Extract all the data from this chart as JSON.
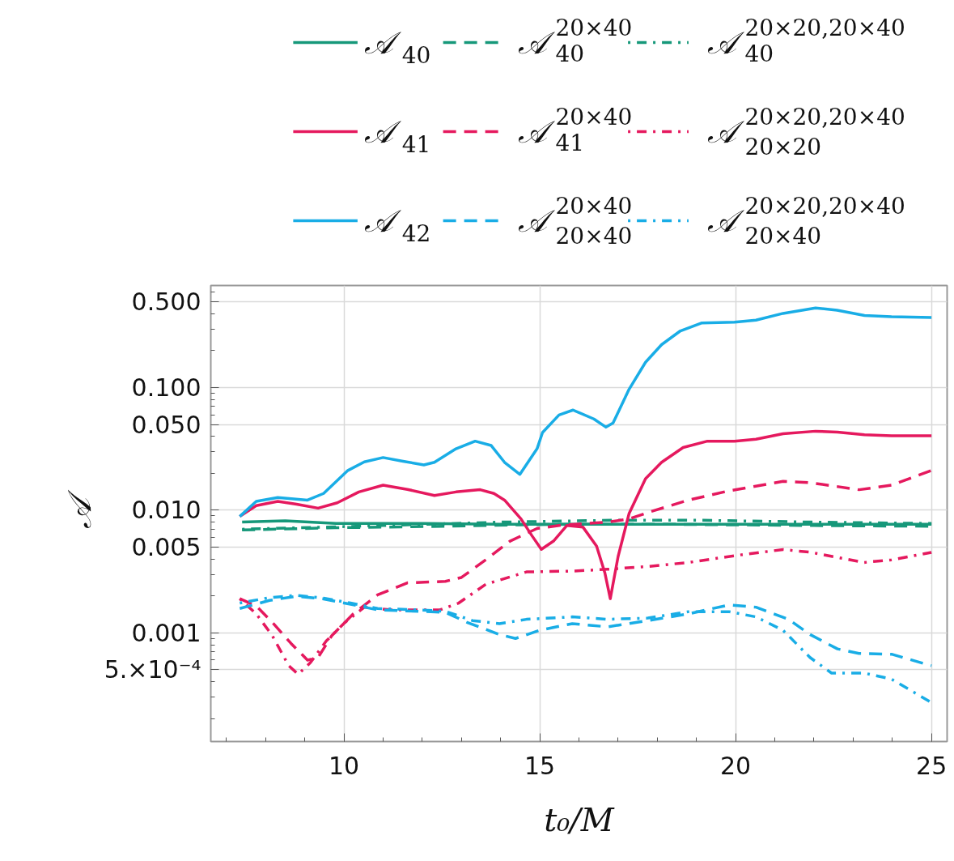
{
  "chart_data": {
    "type": "line",
    "xlabel": "t₀/M",
    "ylabel": "𝒜",
    "log": "y",
    "grid": true,
    "legend": "top",
    "xlim": [
      6.6,
      25.4
    ],
    "ylim": [
      0.00013,
      0.68
    ],
    "xticks": [
      10,
      15,
      20,
      25
    ],
    "yticks": [
      {
        "value": 0.5,
        "label": "0.500"
      },
      {
        "value": 0.1,
        "label": "0.100"
      },
      {
        "value": 0.05,
        "label": "0.050"
      },
      {
        "value": 0.01,
        "label": "0.010"
      },
      {
        "value": 0.005,
        "label": "0.005"
      },
      {
        "value": 0.001,
        "label": "0.001"
      },
      {
        "value": 0.0005,
        "label": "5.×10⁻⁴"
      }
    ],
    "series": [
      {
        "name": "𝒜$_{40}$",
        "color": "#16987a",
        "line_style": "solid",
        "x": [
          7.4,
          8.5,
          9.8,
          12,
          14,
          16,
          18,
          20,
          22,
          25
        ],
        "values": [
          0.008,
          0.0082,
          0.0078,
          0.0078,
          0.0077,
          0.0077,
          0.0077,
          0.0077,
          0.0077,
          0.0077
        ]
      },
      {
        "name": "𝒜$^{20×40}$$_{40}$",
        "color": "#16987a",
        "line_style": "dashed",
        "x": [
          7.4,
          9.8,
          12.6,
          14.5,
          16,
          18,
          20,
          22,
          25
        ],
        "values": [
          0.0069,
          0.0072,
          0.0074,
          0.0076,
          0.0077,
          0.0077,
          0.0076,
          0.0075,
          0.0074
        ]
      },
      {
        "name": "𝒜$^{20×20,20×40}$$_{40}$",
        "color": "#16987a",
        "line_style": "dashdot",
        "x": [
          7.4,
          11,
          14,
          17,
          19,
          22,
          25
        ],
        "values": [
          0.007,
          0.0075,
          0.008,
          0.0083,
          0.0083,
          0.008,
          0.0078
        ]
      },
      {
        "name": "𝒜$_{41}$",
        "color": "#e5195e",
        "line_style": "solid",
        "x": [
          7.34,
          7.76,
          8.31,
          8.79,
          9.34,
          9.83,
          10.38,
          11.0,
          11.62,
          12.31,
          12.86,
          13.48,
          13.83,
          14.1,
          14.52,
          14.8,
          15.04,
          15.35,
          15.69,
          16.1,
          16.45,
          16.66,
          16.8,
          17.0,
          17.28,
          17.7,
          18.11,
          18.66,
          19.28,
          19.97,
          20.52,
          21.21,
          22.04,
          22.6,
          23.29,
          23.98,
          25.0
        ],
        "values": [
          0.0089,
          0.0109,
          0.0118,
          0.0112,
          0.0104,
          0.0115,
          0.0141,
          0.016,
          0.0148,
          0.0132,
          0.0141,
          0.0147,
          0.0137,
          0.0121,
          0.0085,
          0.0062,
          0.0048,
          0.0056,
          0.0075,
          0.0073,
          0.0051,
          0.0031,
          0.0019,
          0.0042,
          0.0094,
          0.0181,
          0.0246,
          0.0325,
          0.0366,
          0.0366,
          0.0379,
          0.042,
          0.0441,
          0.0434,
          0.0413,
          0.0405,
          0.0405
        ]
      },
      {
        "name": "𝒜$^{20×40}$$_{41}$",
        "color": "#e5195e",
        "line_style": "dashed",
        "x": [
          7.34,
          7.76,
          8.17,
          8.65,
          9.07,
          9.34,
          9.69,
          10.24,
          10.86,
          11.62,
          12.59,
          13.0,
          13.62,
          14.24,
          14.93,
          15.63,
          16.73,
          17.28,
          17.9,
          18.8,
          19.83,
          21.21,
          21.9,
          23.15,
          23.98,
          25.0
        ],
        "values": [
          0.0019,
          0.00166,
          0.00122,
          0.00082,
          0.0006,
          0.00063,
          0.00095,
          0.00143,
          0.00204,
          0.00256,
          0.00263,
          0.00283,
          0.00394,
          0.0056,
          0.0071,
          0.0076,
          0.008,
          0.0085,
          0.0099,
          0.0121,
          0.0144,
          0.0172,
          0.0168,
          0.0147,
          0.016,
          0.0211
        ]
      },
      {
        "name": "𝒜$^{20×20,20×40}$$_{20×20}$",
        "color": "#e5195e",
        "line_style": "dashdot",
        "x": [
          7.34,
          7.76,
          8.17,
          8.59,
          8.83,
          9.14,
          9.55,
          10.03,
          10.52,
          11.21,
          12.45,
          12.93,
          13.62,
          14.66,
          15.83,
          16.73,
          17.76,
          18.8,
          19.97,
          21.21,
          21.9,
          23.28,
          23.98,
          25.0
        ],
        "values": [
          0.0019,
          0.00143,
          0.00095,
          0.00054,
          0.00046,
          0.00057,
          0.00086,
          0.00122,
          0.00162,
          0.00154,
          0.00154,
          0.00175,
          0.00249,
          0.00314,
          0.00319,
          0.0033,
          0.00348,
          0.00375,
          0.00426,
          0.00478,
          0.00455,
          0.00375,
          0.00394,
          0.00453
        ]
      },
      {
        "name": "𝒜$_{42}$",
        "color": "#19ade6",
        "line_style": "solid",
        "x": [
          7.34,
          7.76,
          8.31,
          9.07,
          9.48,
          10.1,
          10.52,
          11.0,
          11.48,
          12.04,
          12.31,
          12.86,
          13.35,
          13.76,
          14.1,
          14.49,
          14.93,
          15.07,
          15.49,
          15.85,
          16.38,
          16.69,
          16.87,
          17.28,
          17.7,
          18.11,
          18.59,
          19.14,
          19.97,
          20.52,
          21.21,
          22.04,
          22.59,
          23.29,
          23.98,
          25.0
        ],
        "values": [
          0.0089,
          0.0118,
          0.0127,
          0.0121,
          0.0137,
          0.0211,
          0.0248,
          0.0269,
          0.0252,
          0.0234,
          0.0246,
          0.0317,
          0.0366,
          0.0337,
          0.0246,
          0.0196,
          0.0317,
          0.043,
          0.0598,
          0.0656,
          0.0555,
          0.0476,
          0.0514,
          0.097,
          0.161,
          0.224,
          0.29,
          0.337,
          0.342,
          0.355,
          0.403,
          0.446,
          0.428,
          0.387,
          0.378,
          0.373
        ]
      },
      {
        "name": "𝒜$^{20×40}$$_{20×40}$",
        "color": "#19ade6",
        "line_style": "dashed",
        "x": [
          7.34,
          8.1,
          8.79,
          9.48,
          10.17,
          10.86,
          11.9,
          12.59,
          13.14,
          13.97,
          14.38,
          15.0,
          15.83,
          16.73,
          17.76,
          18.8,
          19.83,
          20.52,
          21.35,
          21.9,
          22.6,
          23.15,
          23.98,
          25.0
        ],
        "values": [
          0.00158,
          0.00184,
          0.00199,
          0.00189,
          0.00171,
          0.00154,
          0.0015,
          0.00147,
          0.00122,
          0.00097,
          0.0009,
          0.00105,
          0.00119,
          0.00112,
          0.00126,
          0.00143,
          0.00169,
          0.00162,
          0.00129,
          0.00097,
          0.00074,
          0.00068,
          0.00067,
          0.00054
        ]
      },
      {
        "name": "𝒜$^{20×20,20×40}$$_{20×40}$",
        "color": "#19ade6",
        "line_style": "dashdot",
        "x": [
          7.34,
          8.1,
          8.79,
          9.48,
          10.17,
          10.86,
          11.9,
          12.59,
          13.28,
          13.97,
          14.66,
          15.83,
          16.73,
          17.76,
          18.8,
          19.83,
          20.52,
          21.21,
          21.9,
          22.45,
          23.28,
          23.98,
          25.0
        ],
        "values": [
          0.00175,
          0.00194,
          0.00202,
          0.00192,
          0.00175,
          0.00158,
          0.00154,
          0.0015,
          0.00126,
          0.00119,
          0.00129,
          0.00135,
          0.00129,
          0.00132,
          0.00149,
          0.00149,
          0.00135,
          0.00105,
          0.00063,
          0.00047,
          0.00047,
          0.00042,
          0.00027
        ]
      }
    ]
  }
}
